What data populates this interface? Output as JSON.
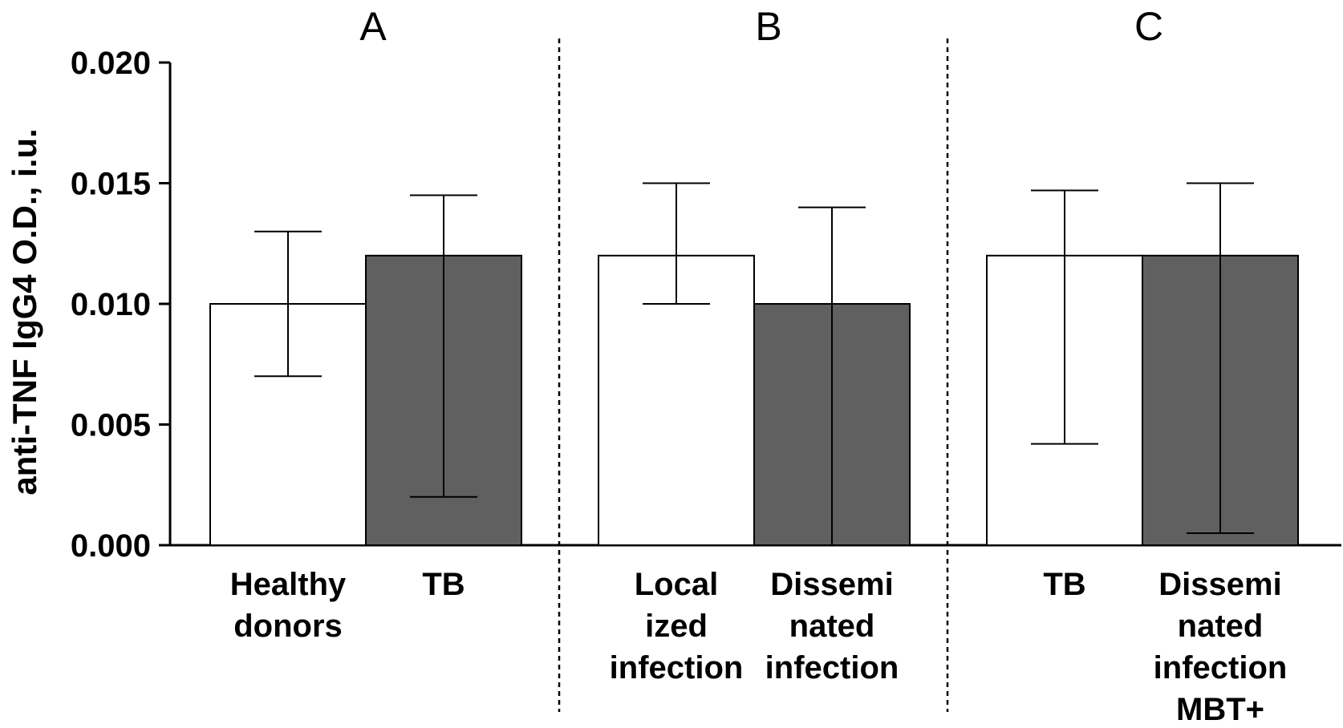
{
  "chart_data": {
    "type": "bar",
    "ylabel": "anti-TNF IgG4 O.D., i.u.",
    "ylim": [
      0,
      0.02
    ],
    "yticks": [
      "0.000",
      "0.005",
      "0.010",
      "0.015",
      "0.020"
    ],
    "ytick_values": [
      0,
      0.005,
      0.01,
      0.015,
      0.02
    ],
    "panels": [
      "A",
      "B",
      "C"
    ],
    "colors": {
      "white_bar": "#ffffff",
      "gray_bar": "#606060",
      "stroke": "#000000"
    },
    "bars": [
      {
        "panel": "A",
        "label_lines": [
          "Healthy",
          "donors"
        ],
        "value": 0.01,
        "err_low": 0.007,
        "err_high": 0.013,
        "fill": "white"
      },
      {
        "panel": "A",
        "label_lines": [
          "TB"
        ],
        "value": 0.012,
        "err_low": 0.002,
        "err_high": 0.0145,
        "fill": "gray"
      },
      {
        "panel": "B",
        "label_lines": [
          "Local",
          "ized",
          "infection"
        ],
        "value": 0.012,
        "err_low": 0.01,
        "err_high": 0.015,
        "fill": "white"
      },
      {
        "panel": "B",
        "label_lines": [
          "Dissemi",
          "nated",
          "infection"
        ],
        "value": 0.01,
        "err_low": 0.0,
        "err_high": 0.014,
        "fill": "gray"
      },
      {
        "panel": "C",
        "label_lines": [
          "TB"
        ],
        "value": 0.012,
        "err_low": 0.0042,
        "err_high": 0.0147,
        "fill": "white"
      },
      {
        "panel": "C",
        "label_lines": [
          "Dissemi",
          "nated",
          "infection",
          "MBT+"
        ],
        "value": 0.012,
        "err_low": 0.0005,
        "err_high": 0.015,
        "fill": "gray"
      }
    ]
  }
}
